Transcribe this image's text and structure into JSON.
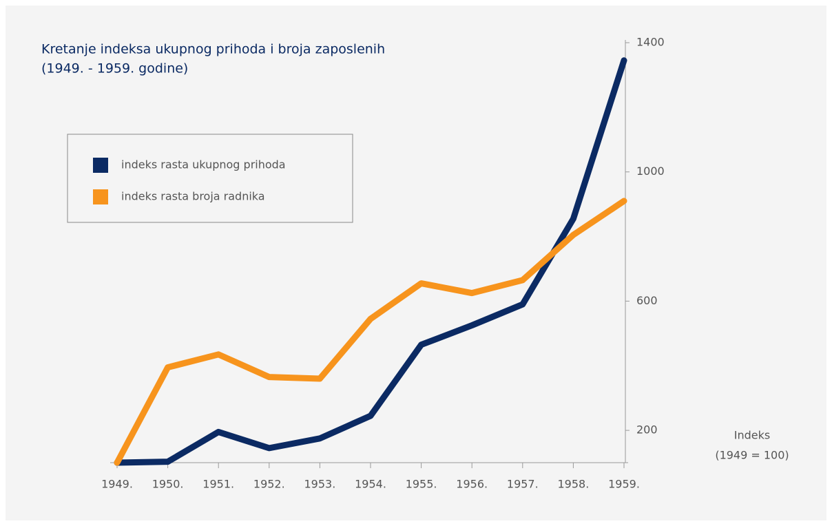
{
  "chart_data": {
    "type": "line",
    "title": "Kretanje indeksa ukupnog prihoda i broja zaposlenih",
    "subtitle": "(1949. - 1959. godine)",
    "y_axis_label": "Indeks",
    "y_axis_note": "(1949 = 100)",
    "categories": [
      "1949.",
      "1950.",
      "1951.",
      "1952.",
      "1953.",
      "1954.",
      "1955.",
      "1956.",
      "1957.",
      "1958.",
      "1959."
    ],
    "series": [
      {
        "name": "indeks rasta ukupnog prihoda",
        "color": "#0b2a63",
        "values": [
          100,
          103,
          195,
          145,
          175,
          245,
          465,
          525,
          590,
          855,
          1345
        ]
      },
      {
        "name": "indeks rasta broja radnika",
        "color": "#f7941d",
        "values": [
          100,
          395,
          435,
          365,
          360,
          545,
          655,
          625,
          665,
          805,
          910
        ]
      }
    ],
    "ylim": [
      100,
      1400
    ],
    "yticks": [
      200,
      600,
      1000,
      1400
    ],
    "legend": "upper left"
  }
}
